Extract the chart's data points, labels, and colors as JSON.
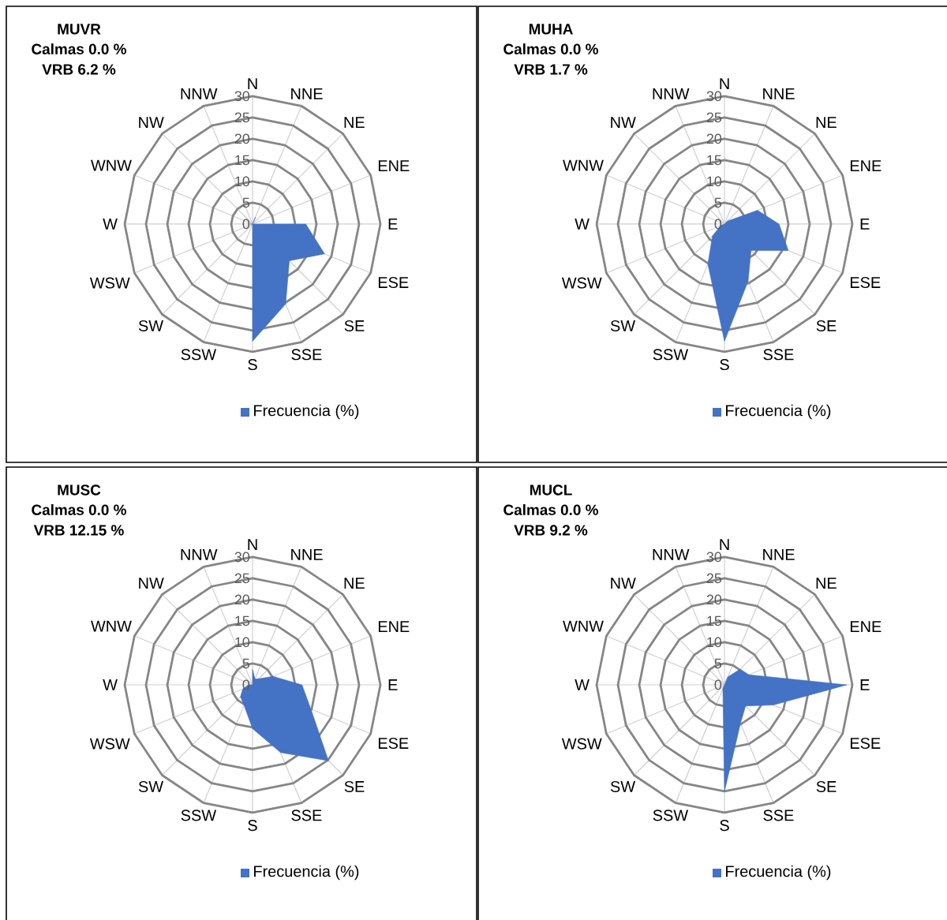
{
  "chart_data": [
    {
      "type": "radar",
      "title": "MUVR",
      "subtitle": "Calmas 0.0 %",
      "annotations": [
        "VRB 6.2 %"
      ],
      "categories": [
        "N",
        "NNE",
        "NE",
        "ENE",
        "E",
        "ESE",
        "SE",
        "SSE",
        "S",
        "SSW",
        "SW",
        "WSW",
        "W",
        "WNW",
        "NW",
        "NNW"
      ],
      "series": [
        {
          "name": "Frecuencia (%)",
          "color": "#4472c4",
          "values": [
            0,
            1.8,
            0,
            0,
            12.5,
            18.3,
            12.2,
            20.3,
            27.5,
            0,
            0,
            0,
            0.5,
            0,
            0,
            0
          ]
        }
      ],
      "ylim": [
        0,
        30
      ],
      "yticks": [
        0,
        5,
        10,
        15,
        20,
        25,
        30
      ],
      "grid": true,
      "legend": "bottom"
    },
    {
      "type": "radar",
      "title": "MUHA",
      "subtitle": "Calmas 0.0 %",
      "annotations": [
        "VRB 1.7 %"
      ],
      "categories": [
        "N",
        "NNE",
        "NE",
        "ENE",
        "E",
        "ESE",
        "SE",
        "SSE",
        "S",
        "SSW",
        "SW",
        "WSW",
        "W",
        "WNW",
        "NW",
        "NNW"
      ],
      "series": [
        {
          "name": "Frecuencia (%)",
          "color": "#4472c4",
          "values": [
            0,
            0,
            1,
            8.4,
            12.8,
            16.2,
            8.8,
            14.5,
            27.5,
            10.2,
            4,
            1,
            0,
            0,
            0,
            0
          ]
        }
      ],
      "ylim": [
        0,
        30
      ],
      "yticks": [
        0,
        5,
        10,
        15,
        20,
        25,
        30
      ],
      "grid": true,
      "legend": "bottom"
    },
    {
      "type": "radar",
      "title": "MUSC",
      "subtitle": "Calmas 0.0 %",
      "annotations": [
        "VRB 12.15 %"
      ],
      "categories": [
        "N",
        "NNE",
        "NE",
        "ENE",
        "E",
        "ESE",
        "SE",
        "SSE",
        "S",
        "SSW",
        "SW",
        "WSW",
        "W",
        "WNW",
        "NW",
        "NNW"
      ],
      "series": [
        {
          "name": "Frecuencia (%)",
          "color": "#4472c4",
          "values": [
            3.6,
            1.5,
            2,
            5.2,
            11.6,
            14.8,
            25.2,
            17.2,
            10.3,
            5.2,
            4,
            2.5,
            1,
            0,
            0,
            0
          ]
        }
      ],
      "ylim": [
        0,
        30
      ],
      "yticks": [
        0,
        5,
        10,
        15,
        20,
        25,
        30
      ],
      "grid": true,
      "legend": "bottom"
    },
    {
      "type": "radar",
      "title": "MUCL",
      "subtitle": "Calmas 0.0 %",
      "annotations": [
        "VRB 9.2 %"
      ],
      "categories": [
        "N",
        "NNE",
        "NE",
        "ENE",
        "E",
        "ESE",
        "SE",
        "SSE",
        "S",
        "SSW",
        "SW",
        "WSW",
        "W",
        "WNW",
        "NW",
        "NNW"
      ],
      "series": [
        {
          "name": "Frecuencia (%)",
          "color": "#4472c4",
          "values": [
            0,
            2,
            5.2,
            6.2,
            28.7,
            12.4,
            7,
            9.8,
            25,
            1,
            0,
            0,
            0,
            0,
            0,
            0
          ]
        }
      ],
      "ylim": [
        0,
        30
      ],
      "yticks": [
        0,
        5,
        10,
        15,
        20,
        25,
        30
      ],
      "grid": true,
      "legend": "bottom"
    }
  ]
}
